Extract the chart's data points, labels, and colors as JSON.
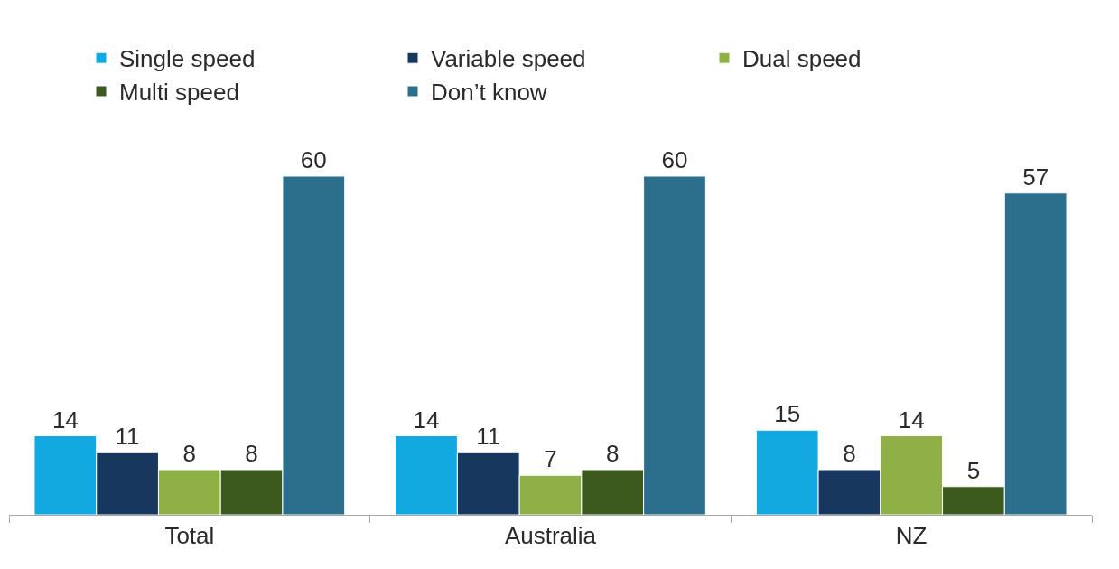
{
  "chart_data": {
    "type": "bar",
    "categories": [
      "Total",
      "Australia",
      "NZ"
    ],
    "series": [
      {
        "name": "Single speed",
        "color": "#12a8e0",
        "values": [
          14,
          14,
          15
        ]
      },
      {
        "name": "Variable speed",
        "color": "#17375e",
        "values": [
          11,
          11,
          8
        ]
      },
      {
        "name": "Dual speed",
        "color": "#8fb046",
        "values": [
          8,
          7,
          14
        ]
      },
      {
        "name": "Multi speed",
        "color": "#3d5a1e",
        "values": [
          8,
          8,
          5
        ]
      },
      {
        "name": "Don’t know",
        "color": "#2c6f8c",
        "values": [
          60,
          60,
          57
        ]
      }
    ],
    "data_labels": true,
    "legend": "top"
  }
}
